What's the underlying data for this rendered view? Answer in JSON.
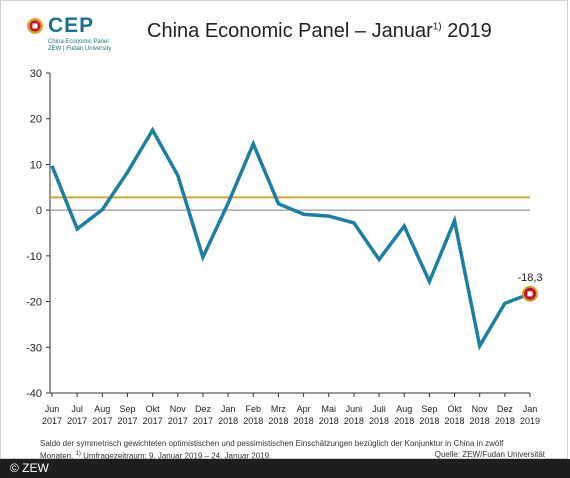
{
  "logo": {
    "wordmark": "CEP",
    "line1": "China Economic Panel",
    "line2": "ZEW | Fudan University"
  },
  "title": {
    "main": "China Economic Panel – Januar",
    "superscript": "1)",
    "year": " 2019"
  },
  "chart_data": {
    "type": "line",
    "categories": [
      [
        "Jun",
        "2017"
      ],
      [
        "Jul",
        "2017"
      ],
      [
        "Aug",
        "2017"
      ],
      [
        "Sep",
        "2017"
      ],
      [
        "Okt",
        "2017"
      ],
      [
        "Nov",
        "2017"
      ],
      [
        "Dez",
        "2017"
      ],
      [
        "Jan",
        "2018"
      ],
      [
        "Feb",
        "2018"
      ],
      [
        "Mrz",
        "2018"
      ],
      [
        "Apr",
        "2018"
      ],
      [
        "Mai",
        "2018"
      ],
      [
        "Juni",
        "2018"
      ],
      [
        "Juli",
        "2018"
      ],
      [
        "Aug",
        "2018"
      ],
      [
        "Sep",
        "2018"
      ],
      [
        "Okt",
        "2018"
      ],
      [
        "Nov",
        "2018"
      ],
      [
        "Dez",
        "2018"
      ],
      [
        "Jan",
        "2019"
      ]
    ],
    "series": [
      {
        "values": [
          9.7,
          -4.1,
          0.1,
          8.3,
          17.5,
          7.6,
          -10.3,
          1.5,
          14.5,
          1.4,
          -0.9,
          -1.3,
          -2.8,
          -10.8,
          -3.5,
          -15.6,
          -2.3,
          -29.7,
          -20.4,
          -18.3
        ],
        "color": "#1b7fa3"
      }
    ],
    "reference_line": {
      "value": 2.8,
      "color": "#d4a72c"
    },
    "zero_line_color": "#999999",
    "last_value_label": "-18,3",
    "ylim": [
      -40,
      30
    ],
    "yticks": [
      30,
      20,
      10,
      0,
      -10,
      -20,
      -30,
      -40
    ],
    "grid": true
  },
  "footnote": {
    "text1": "Saldo der symmetrisch gewichteten optimistischen und pessimistischen Einschätzungen bezüglich der Konjunktur in China in zwölf",
    "text2_start": "Monaten. ",
    "text2_sup": "1)",
    "text2_end": " Umfragezeitraum: 9. Januar 2019 – 24. Januar 2019.",
    "source": "Quelle: ZEW/Fudan Universität"
  },
  "copyright": "© ZEW"
}
